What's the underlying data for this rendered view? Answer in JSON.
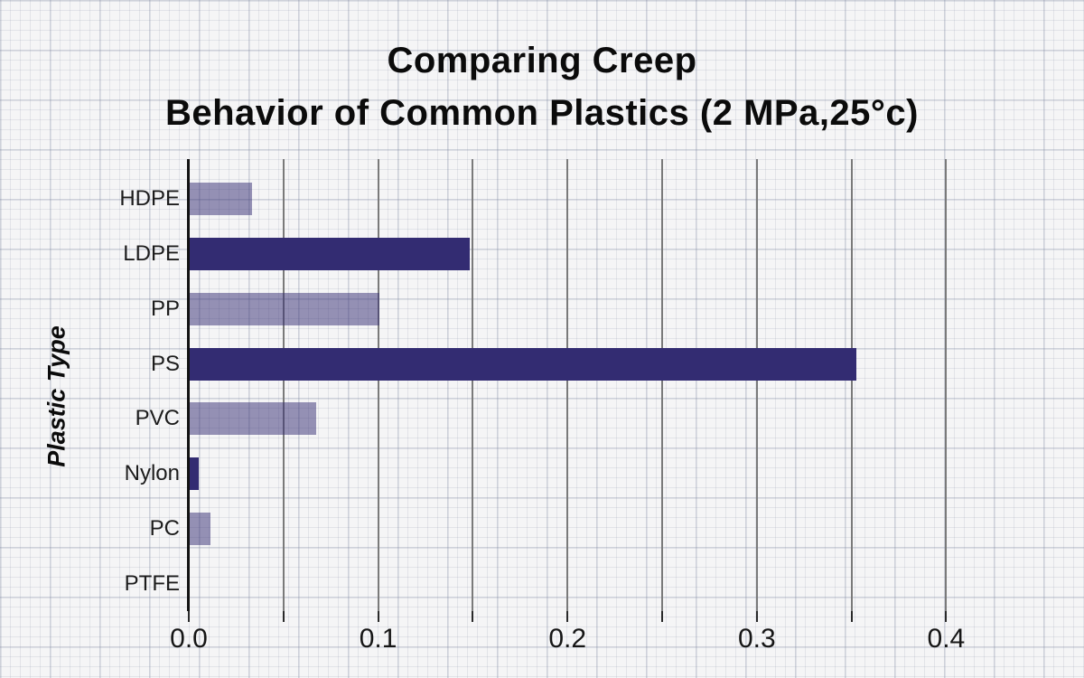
{
  "chart_data": {
    "type": "bar",
    "orientation": "horizontal",
    "title": "Comparing Creep Behavior of Common Plastics (2 MPa,25°c)",
    "title_lines": [
      "Comparing Creep",
      "Behavior of Common Plastics (2 MPa,25°c)"
    ],
    "xlabel": "",
    "ylabel": "Plastic Type",
    "categories": [
      "HDPE",
      "LDPE",
      "PP",
      "PS",
      "PVC",
      "Nylon",
      "PC",
      "PTFE"
    ],
    "values": [
      0.033,
      0.148,
      0.1,
      0.352,
      0.067,
      0.005,
      0.011,
      0
    ],
    "bar_style": [
      "light",
      "dark",
      "light",
      "dark",
      "light",
      "dark",
      "light",
      "dark"
    ],
    "colors": {
      "bar_dark": "#332c72",
      "bar_light_rgba": "rgba(51,44,114,0.5)",
      "gridline": "#7a7a7a",
      "axis": "#121212",
      "text": "#0b0b0b"
    },
    "xlim": [
      0,
      0.42
    ],
    "xticks": [
      0,
      0.05,
      0.1,
      0.15,
      0.2,
      0.25,
      0.3,
      0.35,
      0.4
    ],
    "xtick_labeled_values": [
      0,
      0.1,
      0.2,
      0.3,
      0.4
    ],
    "xtick_labels": [
      "0.0",
      "0.1",
      "0.2",
      "0.3",
      "0.4"
    ],
    "grid": "vertical gridlines every 0.05, graph-paper page background",
    "legend": "none"
  }
}
